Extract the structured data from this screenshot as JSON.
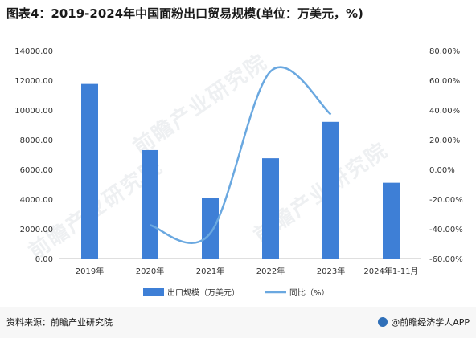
{
  "title": "图表4：2019-2024年中国面粉出口贸易规模(单位：万美元，%)",
  "source": "资料来源：前瞻产业研究院",
  "brand": "@前瞻经济学人APP",
  "watermark": "前瞻产业研究院",
  "colors": {
    "bar": "#3e7fd6",
    "line": "#6aa8e0",
    "grid": "#e6e6e6",
    "axis": "#bfbfbf",
    "text": "#333333"
  },
  "chart_data": {
    "type": "bar",
    "categories": [
      "2019年",
      "2020年",
      "2021年",
      "2022年",
      "2023年",
      "2024年1-11月"
    ],
    "series": [
      {
        "name": "出口规模（万美元）",
        "type": "bar",
        "axis": "left",
        "values": [
          11750,
          7300,
          4100,
          6750,
          9200,
          5100
        ]
      },
      {
        "name": "同比（%）",
        "type": "line",
        "axis": "right",
        "smooth": true,
        "values": [
          null,
          -37.5,
          -43,
          66,
          37,
          null
        ]
      }
    ],
    "ylim_left": [
      0,
      14000
    ],
    "yticks_left": [
      "0.00",
      "2000.00",
      "4000.00",
      "6000.00",
      "8000.00",
      "10000.00",
      "12000.00",
      "14000.00"
    ],
    "ylim_right": [
      -60,
      80
    ],
    "yticks_right": [
      "-60.00%",
      "-40.00%",
      "-20.00%",
      "0.00%",
      "20.00%",
      "40.00%",
      "60.00%",
      "80.00%"
    ],
    "legend": "bottom",
    "grid": false
  }
}
